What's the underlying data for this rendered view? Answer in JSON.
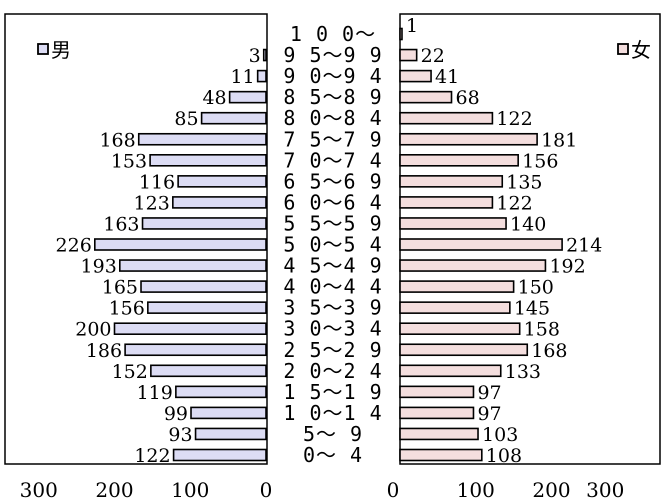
{
  "chart_data": {
    "type": "bar",
    "orientation": "horizontal",
    "layout": "population-pyramid",
    "categories": [
      "0～ 4",
      "5～ 9",
      "10～14",
      "15～19",
      "20～24",
      "25～29",
      "30～34",
      "35～39",
      "40～44",
      "45～49",
      "50～54",
      "55～59",
      "60～64",
      "65～69",
      "70～74",
      "75～79",
      "80～84",
      "85～89",
      "90～94",
      "95～99",
      "100～"
    ],
    "category_labels": [
      "0～ 4",
      "5～ 9",
      "1 0～1 4",
      "1 5～1 9",
      "2 0～2 4",
      "2 5～2 9",
      "3 0～3 4",
      "3 5～3 9",
      "4 0～4 4",
      "4 5～4 9",
      "5 0～5 4",
      "5 5～5 9",
      "6 0～6 4",
      "6 5～6 9",
      "7 0～7 4",
      "7 5～7 9",
      "8 0～8 4",
      "8 5～8 9",
      "9 0～9 4",
      "9 5～9 9",
      "1 0 0～"
    ],
    "series": [
      {
        "name": "男",
        "side": "left",
        "values": [
          122,
          93,
          99,
          119,
          152,
          186,
          200,
          156,
          165,
          193,
          226,
          163,
          123,
          116,
          153,
          168,
          85,
          48,
          11,
          3,
          0
        ],
        "color": "#dcdcf4"
      },
      {
        "name": "女",
        "side": "right",
        "values": [
          108,
          103,
          97,
          97,
          133,
          168,
          158,
          145,
          150,
          192,
          214,
          140,
          122,
          135,
          156,
          181,
          122,
          68,
          41,
          22,
          1
        ],
        "color": "#f4dede"
      }
    ],
    "xlim": [
      0,
      300
    ],
    "xticks": [
      "300",
      "200",
      "100",
      "0"
    ],
    "xticks_right": [
      "0",
      "100",
      "200",
      "300"
    ],
    "grid": false,
    "legend": [
      "男",
      "女"
    ]
  }
}
